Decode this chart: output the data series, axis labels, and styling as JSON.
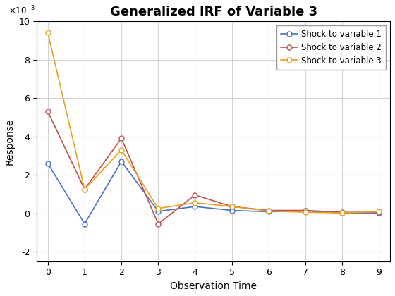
{
  "title": "Generalized IRF of Variable 3",
  "xlabel": "Observation Time",
  "ylabel": "Response",
  "x": [
    0,
    1,
    2,
    3,
    4,
    5,
    6,
    7,
    8,
    9
  ],
  "series": [
    {
      "label": "Shock to variable 1",
      "color": "#4472C4",
      "marker": "o",
      "y": [
        0.0026,
        -0.00055,
        0.0027,
        0.0001,
        0.00035,
        0.00015,
        8e-05,
        0.00012,
        2e-05,
        2e-05
      ]
    },
    {
      "label": "Shock to variable 2",
      "color": "#C0504D",
      "marker": "o",
      "y": [
        0.0053,
        0.00125,
        0.0039,
        -0.00055,
        0.00095,
        0.00035,
        0.00015,
        0.00015,
        5e-05,
        5e-05
      ]
    },
    {
      "label": "Shock to variable 3",
      "color": "#E8A020",
      "marker": "o",
      "y": [
        0.0094,
        0.00125,
        0.0033,
        0.00025,
        0.00055,
        0.00035,
        0.00012,
        5e-05,
        2e-05,
        8e-05
      ]
    }
  ],
  "ylim": [
    -0.0025,
    0.01
  ],
  "xlim": [
    -0.3,
    9.3
  ],
  "yticks": [
    -0.002,
    0.0,
    0.002,
    0.004,
    0.006,
    0.008,
    0.01
  ],
  "xticks": [
    0,
    1,
    2,
    3,
    4,
    5,
    6,
    7,
    8,
    9
  ],
  "grid": true,
  "background_color": "#ffffff",
  "marker_size": 5,
  "linewidth": 1.2,
  "title_fontsize": 13,
  "label_fontsize": 10,
  "tick_fontsize": 9
}
